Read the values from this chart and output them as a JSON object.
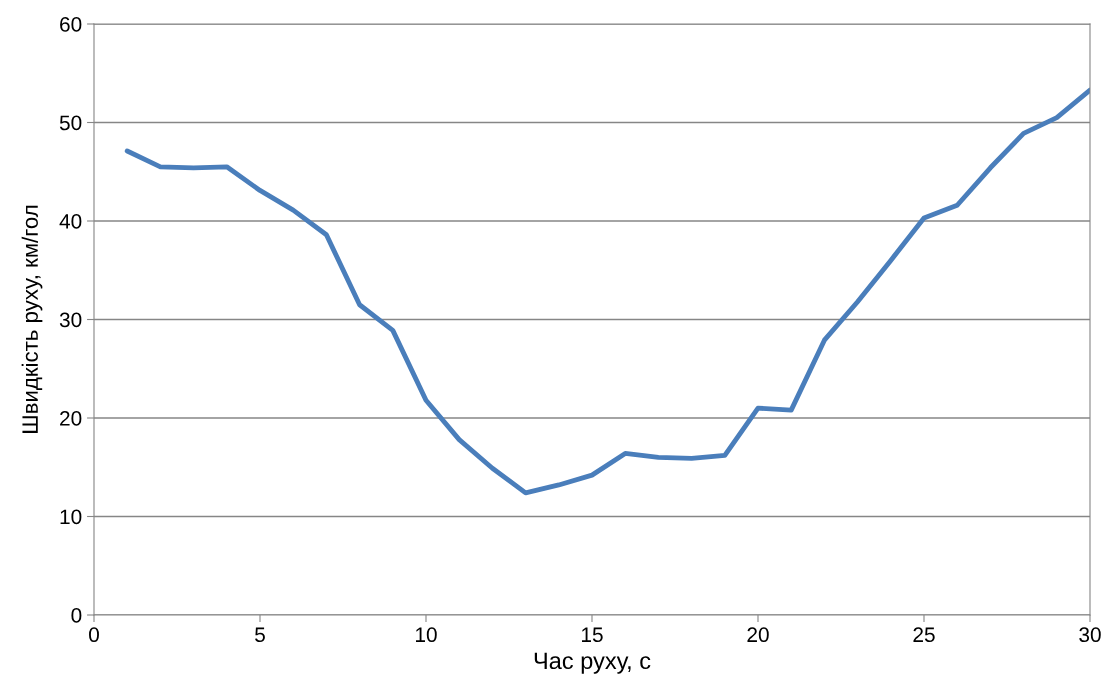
{
  "chart_data": {
    "type": "line",
    "xlabel": "Час руху, с",
    "ylabel": "Швидкість руху, км/гол",
    "x": [
      1,
      2,
      3,
      4,
      5,
      6,
      7,
      8,
      9,
      10,
      11,
      12,
      13,
      14,
      15,
      16,
      17,
      18,
      19,
      20,
      21,
      22,
      23,
      24,
      25,
      26,
      27,
      28,
      29,
      30
    ],
    "series": [
      {
        "color": "#4a7ebb",
        "values": [
          47.1,
          45.5,
          45.4,
          45.5,
          43.1,
          41.1,
          38.6,
          31.5,
          28.9,
          21.8,
          17.8,
          14.9,
          12.4,
          13.2,
          14.2,
          16.4,
          16.0,
          15.9,
          16.2,
          21.0,
          20.8,
          27.9,
          31.8,
          36.0,
          40.3,
          41.6,
          45.4,
          48.9,
          50.5,
          53.3
        ]
      }
    ],
    "xlim": [
      0,
      30
    ],
    "xticks": [
      0,
      5,
      10,
      15,
      20,
      25,
      30
    ],
    "ylim": [
      0,
      60
    ],
    "yticks": [
      0,
      10,
      20,
      30,
      40,
      50,
      60
    ],
    "grid": "y",
    "legend": false,
    "marker": "none",
    "line_style": "solid"
  }
}
